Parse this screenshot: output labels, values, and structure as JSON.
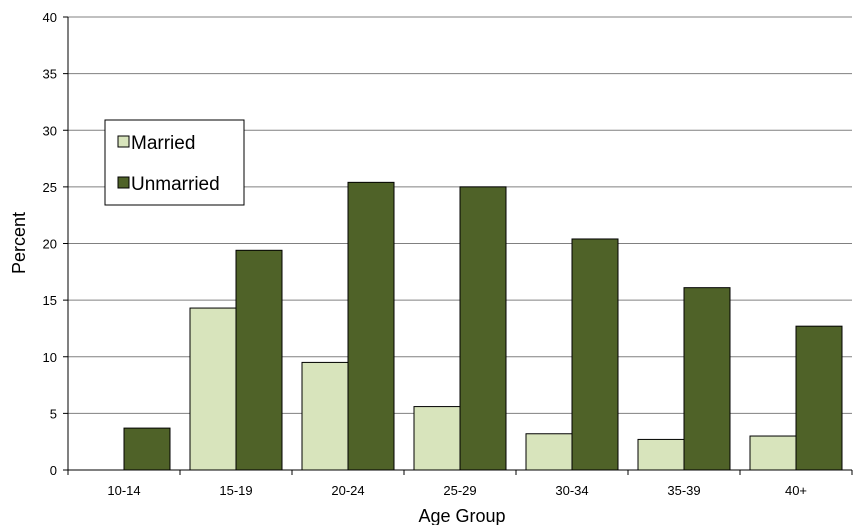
{
  "chart_data": {
    "type": "bar",
    "xlabel": "Age Group",
    "ylabel": "Percent",
    "ylim": [
      0,
      40
    ],
    "yticks": [
      0,
      5,
      10,
      15,
      20,
      25,
      30,
      35,
      40
    ],
    "grid": true,
    "legend_position": "upper-left",
    "categories": [
      "10-14",
      "15-19",
      "20-24",
      "25-29",
      "30-34",
      "35-39",
      "40+"
    ],
    "series": [
      {
        "name": "Married",
        "color": "#d8e4bc",
        "values": [
          0,
          14.3,
          9.5,
          5.6,
          3.2,
          2.7,
          3.0
        ]
      },
      {
        "name": "Unmarried",
        "color": "#4f6228",
        "values": [
          3.7,
          19.4,
          25.4,
          25.0,
          20.4,
          16.1,
          12.7
        ]
      }
    ]
  }
}
